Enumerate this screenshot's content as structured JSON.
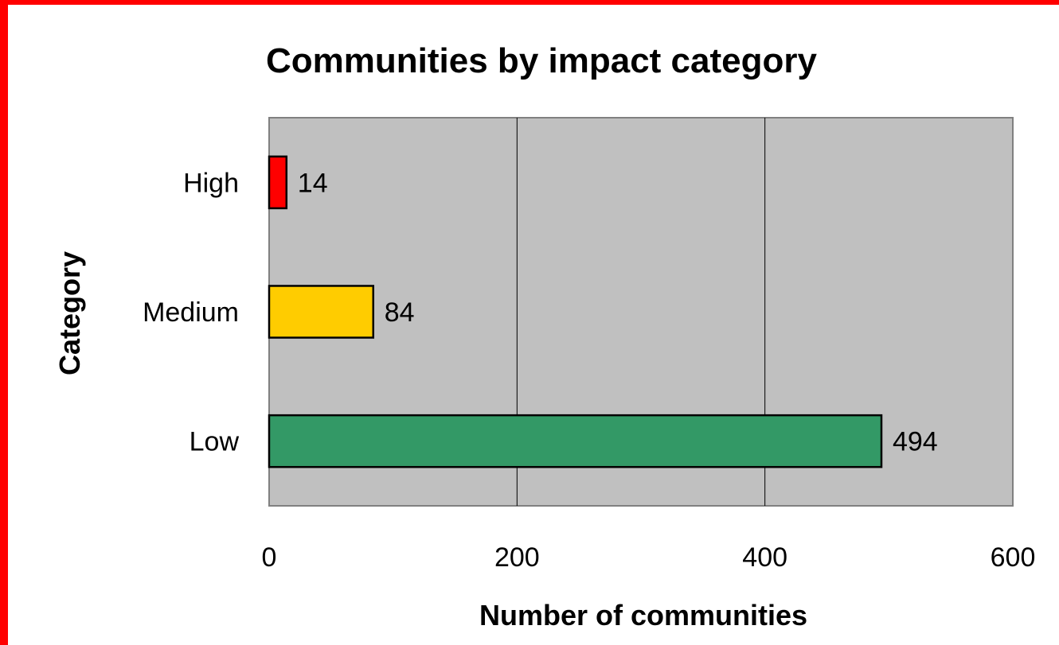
{
  "chart_data": {
    "type": "bar",
    "orientation": "horizontal",
    "title": "Communities by impact category",
    "xlabel": "Number of communities",
    "ylabel": "Category",
    "categories": [
      "High",
      "Medium",
      "Low"
    ],
    "values": [
      14,
      84,
      494
    ],
    "data_labels": [
      "14",
      "84",
      "494"
    ],
    "colors": [
      "#ff0000",
      "#ffcc00",
      "#339966"
    ],
    "xlim": [
      0,
      600
    ],
    "xticks": [
      0,
      200,
      400,
      600
    ],
    "xtick_labels": [
      "0",
      "200",
      "400",
      "600"
    ],
    "grid": true,
    "legend": "none",
    "plot_background": "#c0c0c0",
    "border_color": "#ff0000"
  }
}
